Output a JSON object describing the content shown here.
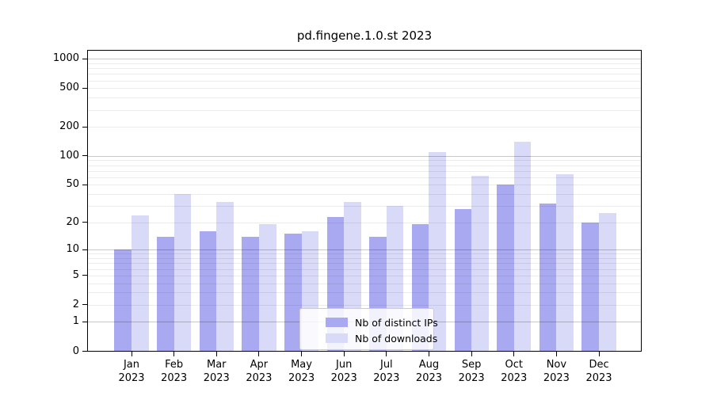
{
  "figure": {
    "title": "pd.fingene.1.0.st 2023"
  },
  "chart_data": {
    "type": "bar",
    "title": "pd.fingene.1.0.st 2023",
    "categories": [
      "Jan 2023",
      "Feb 2023",
      "Mar 2023",
      "Apr 2023",
      "May 2023",
      "Jun 2023",
      "Jul 2023",
      "Aug 2023",
      "Sep 2023",
      "Oct 2023",
      "Nov 2023",
      "Dec 2023"
    ],
    "series": [
      {
        "name": "Nb of distinct IPs",
        "color": "#a9a9f1",
        "values": [
          10,
          14,
          16,
          14,
          15,
          23,
          14,
          19,
          28,
          50,
          32,
          20
        ]
      },
      {
        "name": "Nb of downloads",
        "color": "#d9d9f8",
        "values": [
          24,
          40,
          33,
          19,
          16,
          33,
          30,
          110,
          62,
          140,
          65,
          25
        ]
      }
    ],
    "xlabel": "",
    "ylabel": "",
    "y_scale": "log1p",
    "y_ticks": [
      0,
      1,
      2,
      5,
      10,
      20,
      50,
      100,
      200,
      500,
      1000
    ],
    "ylim": [
      0,
      1240
    ],
    "grid": true,
    "legend_position": "inside-bottom-center"
  },
  "colors": {
    "bar_distinct_ips": "#a9a9f1",
    "bar_downloads": "#d9d9f8",
    "grid_minor": "#ededed",
    "grid_major": "#c7c7c7",
    "axis": "#000000",
    "background": "#ffffff"
  }
}
